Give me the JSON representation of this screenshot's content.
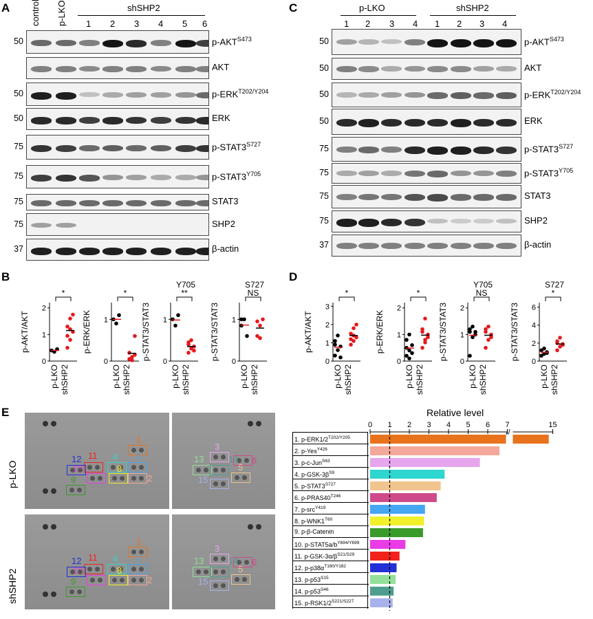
{
  "panels": {
    "A": "A",
    "B": "B",
    "C": "C",
    "D": "D",
    "E": "E"
  },
  "panelA": {
    "lanes_top": [
      "control",
      "p-LKO"
    ],
    "group_label": "shSHP2",
    "lane_numbers": [
      "1",
      "2",
      "3",
      "4",
      "5",
      "6"
    ],
    "rows": [
      {
        "mw": "50",
        "label": "p-AKT",
        "sup": "S473"
      },
      {
        "mw": "",
        "label": "AKT",
        "sup": ""
      },
      {
        "mw": "50",
        "label": "p-ERK",
        "sup": "T202/Y204"
      },
      {
        "mw": "50",
        "label": "ERK",
        "sup": ""
      },
      {
        "mw": "75",
        "label": "p-STAT3",
        "sup": "S727"
      },
      {
        "mw": "75",
        "label": "p-STAT3",
        "sup": "Y705"
      },
      {
        "mw": "75",
        "label": "STAT3",
        "sup": ""
      },
      {
        "mw": "75",
        "label": "SHP2",
        "sup": ""
      },
      {
        "mw": "37",
        "label": "β-actin",
        "sup": ""
      }
    ]
  },
  "panelC": {
    "group1": "p-LKO",
    "group2": "shSHP2",
    "lane_numbers": [
      "1",
      "2",
      "3",
      "4",
      "1",
      "2",
      "3",
      "4"
    ],
    "rows": [
      {
        "mw": "50",
        "label": "p-AKT",
        "sup": "S473"
      },
      {
        "mw": "50",
        "label": "AKT",
        "sup": ""
      },
      {
        "mw": "50",
        "label": "p-ERK",
        "sup": "T202/Y204"
      },
      {
        "mw": "50",
        "label": "ERK",
        "sup": ""
      },
      {
        "mw": "75",
        "label": "p-STAT3",
        "sup": "S727"
      },
      {
        "mw": "75",
        "label": "p-STAT3",
        "sup": "Y705"
      },
      {
        "mw": "75",
        "label": "STAT3",
        "sup": ""
      },
      {
        "mw": "75",
        "label": "SHP2",
        "sup": ""
      },
      {
        "mw": "37",
        "label": "β-actin",
        "sup": ""
      }
    ]
  },
  "panelB": [
    {
      "ylabel": "p-AKT/AKT",
      "title": "",
      "sig": "*",
      "yticks": [
        "0",
        "1",
        "2"
      ]
    },
    {
      "ylabel": "p-ERK/ERK",
      "title": "",
      "sig": "*",
      "yticks": [
        "0",
        "1"
      ]
    },
    {
      "ylabel": "p-STAT3/STAT3",
      "title": "Y705",
      "sig": "**",
      "yticks": [
        "0",
        "1"
      ]
    },
    {
      "ylabel": "p-STAT3/STAT3",
      "title": "S727",
      "sig": "NS",
      "yticks": [
        "0",
        "1"
      ]
    }
  ],
  "panelD": [
    {
      "ylabel": "p-AKT/AKT",
      "title": "",
      "sig": "*",
      "yticks": [
        "0",
        "1",
        "2",
        "3"
      ]
    },
    {
      "ylabel": "p-ERK/ERK",
      "title": "",
      "sig": "*",
      "yticks": [
        "0",
        "1",
        "2"
      ]
    },
    {
      "ylabel": "p-STAT3/STAT3",
      "title": "Y705",
      "sig": "NS",
      "yticks": [
        "0",
        "1",
        "2"
      ]
    },
    {
      "ylabel": "p-STAT3/STAT3",
      "title": "S727",
      "sig": "*",
      "yticks": [
        "0",
        "2",
        "4",
        "6"
      ]
    }
  ],
  "group_labels": {
    "g1": "p-LKO",
    "g2": "shSHP2"
  },
  "panelE": {
    "row_labels": [
      "p-LKO",
      "shSHP2"
    ],
    "spot_numbers": [
      "1",
      "2",
      "3",
      "4",
      "5",
      "6",
      "7",
      "8",
      "9",
      "10",
      "11",
      "12",
      "13",
      "14",
      "15"
    ]
  },
  "chart_data": {
    "type": "bar",
    "title": "Relative level",
    "xlabel": "Relative level",
    "xticks": [
      "0",
      "1",
      "2",
      "3",
      "4",
      "5",
      "6",
      "7",
      "15"
    ],
    "axis_break": [
      7,
      12
    ],
    "reference_line": 1,
    "categories": [
      {
        "name": "1. p-ERK1/2",
        "sup": "T202/Y205"
      },
      {
        "name": "2. p-Yes",
        "sup": "Y426"
      },
      {
        "name": "3. p-c-Jun",
        "sup": "S63"
      },
      {
        "name": "4. p-GSK-3β",
        "sup": "S9"
      },
      {
        "name": "5. p-STAT3",
        "sup": "S727"
      },
      {
        "name": "6. p-PRAS40",
        "sup": "T246"
      },
      {
        "name": "7. p-src",
        "sup": "Y419"
      },
      {
        "name": "8. p-WNK1",
        "sup": "T60"
      },
      {
        "name": "9. p-β-Catenin",
        "sup": ""
      },
      {
        "name": "10. p-STAT5a/b",
        "sup": "Y694/Y699"
      },
      {
        "name": "11. p-GSK-3α/β",
        "sup": "S21/S29"
      },
      {
        "name": "12. p-p38α",
        "sup": "T180/Y182"
      },
      {
        "name": "13. p-p53",
        "sup": "S15"
      },
      {
        "name": "14. p-p53",
        "sup": "S46"
      },
      {
        "name": "15. p-RSK1/2",
        "sup": "S221/S227"
      }
    ],
    "values": [
      14.2,
      6.6,
      5.6,
      3.8,
      3.6,
      3.4,
      2.8,
      2.75,
      2.7,
      1.8,
      1.5,
      1.35,
      1.3,
      1.2,
      1.15
    ],
    "colors": [
      "#e8731c",
      "#f4a89a",
      "#e6a6ee",
      "#2ed6d0",
      "#f1c58e",
      "#cf4a8a",
      "#45a6f2",
      "#f1f02a",
      "#3a9a2a",
      "#ea3ce6",
      "#f2221c",
      "#2330d8",
      "#93e09a",
      "#4d9e8e",
      "#a9b2ec"
    ]
  }
}
